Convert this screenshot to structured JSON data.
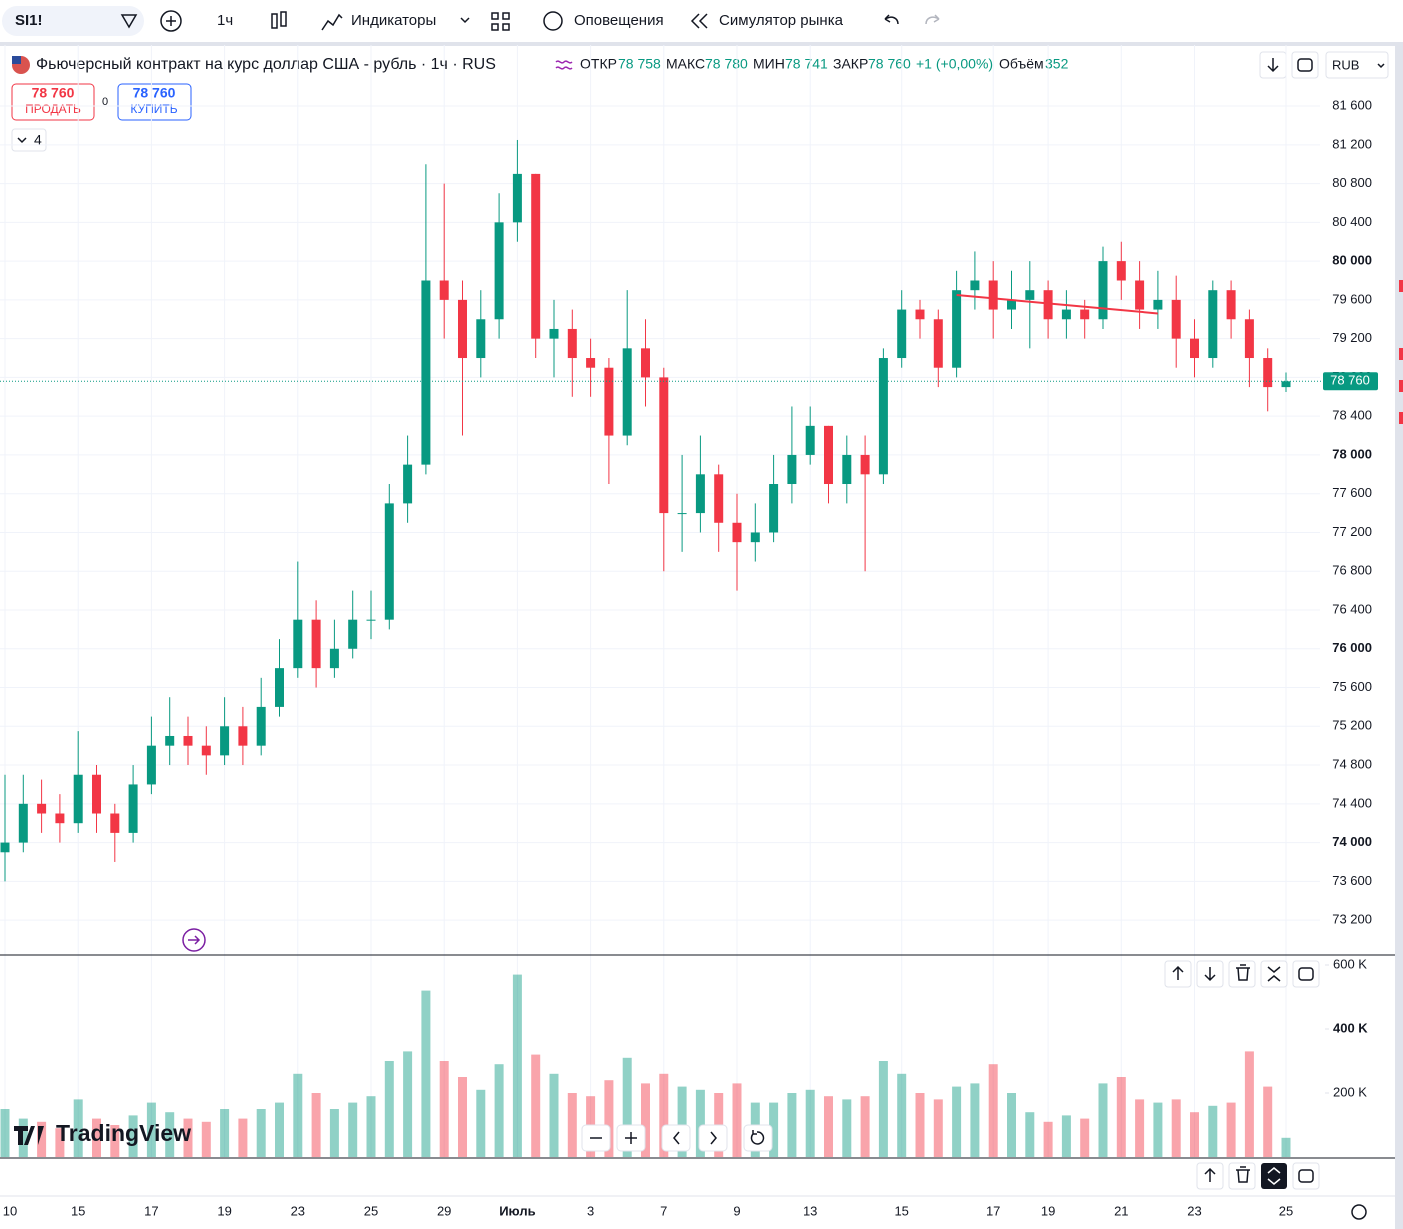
{
  "toolbar": {
    "symbol": "SI1!",
    "interval": "1ч",
    "indicators": "Индикаторы",
    "alerts": "Оповещения",
    "replay": "Симулятор рынка"
  },
  "legend": {
    "title": "Фьючерсный контракт на курс доллар США - рубль · 1ч · RUS",
    "open_label": "ОТКР",
    "open": "78 758",
    "high_label": "МАКС",
    "high": "78 780",
    "low_label": "МИН",
    "low": "78 741",
    "close_label": "ЗАКР",
    "close": "78 760",
    "change": "+1 (+0,00%)",
    "volume_label": "Объём",
    "volume": "352"
  },
  "trade": {
    "sell_price": "78 760",
    "sell": "ПРОДАТЬ",
    "spread": "0",
    "buy_price": "78 760",
    "buy": "КУПИТЬ"
  },
  "indicators_count": "4",
  "currency": "RUB",
  "brand": "TradingView",
  "chart_data": {
    "type": "candlestick",
    "up_color": "#089981",
    "down_color": "#f23645",
    "categories": [
      "10",
      null,
      null,
      null,
      "15",
      null,
      null,
      null,
      "17",
      null,
      null,
      null,
      "19",
      null,
      null,
      null,
      "23",
      null,
      null,
      null,
      "25",
      null,
      null,
      null,
      "29",
      null,
      null,
      null,
      "Июль",
      null,
      null,
      null,
      "3",
      null,
      null,
      null,
      "7",
      null,
      null,
      null,
      "9",
      null,
      null,
      null,
      "13",
      null,
      null,
      null,
      null,
      "15",
      null,
      null,
      null,
      null,
      "17",
      null,
      null,
      "19",
      null,
      null,
      null,
      "21",
      null,
      null,
      null,
      "23",
      null,
      null,
      null,
      null,
      "25"
    ],
    "open": [
      73900,
      74000,
      74400,
      74300,
      74200,
      74700,
      74300,
      74100,
      74600,
      75000,
      75100,
      75000,
      74900,
      75200,
      75000,
      75400,
      75800,
      76300,
      75800,
      76000,
      76300,
      76300,
      77500,
      77900,
      79800,
      79600,
      79000,
      79400,
      80400,
      80900,
      79200,
      79300,
      79000,
      78900,
      78200,
      79100,
      78800,
      77400,
      77400,
      77800,
      77300,
      77100,
      77200,
      77700,
      78000,
      78300,
      77700,
      78000,
      77800,
      79000,
      79500,
      79400,
      78900,
      79700,
      79800,
      79500,
      79600,
      79700,
      79400,
      79500,
      79400,
      80000,
      79800,
      79500,
      79600,
      79200,
      79000,
      79700,
      79400,
      79000,
      78700
    ],
    "high": [
      74700,
      74700,
      74650,
      74500,
      75150,
      74800,
      74400,
      74800,
      75300,
      75500,
      75300,
      75200,
      75500,
      75400,
      75700,
      76100,
      76900,
      76500,
      76300,
      76600,
      76600,
      77700,
      78200,
      81000,
      80800,
      79800,
      79700,
      80700,
      81250,
      80900,
      79600,
      79500,
      79200,
      79000,
      79700,
      79400,
      78900,
      78000,
      78200,
      77900,
      77600,
      77500,
      78000,
      78500,
      78500,
      78300,
      78200,
      78200,
      79100,
      79700,
      79600,
      79500,
      79900,
      80100,
      80000,
      79900,
      80000,
      79800,
      79700,
      79600,
      80150,
      80200,
      80000,
      79900,
      79850,
      79400,
      79800,
      79800,
      79500,
      79100,
      78850
    ],
    "low": [
      73600,
      73900,
      74100,
      74000,
      74100,
      74100,
      73800,
      74000,
      74500,
      74800,
      74800,
      74700,
      74800,
      74800,
      74900,
      75300,
      75700,
      75600,
      75700,
      75900,
      76100,
      76200,
      77300,
      77800,
      79200,
      78200,
      78800,
      79200,
      80200,
      79000,
      78800,
      78600,
      78600,
      77700,
      78100,
      78500,
      76800,
      77000,
      77200,
      77000,
      76600,
      76900,
      77100,
      77500,
      77900,
      77500,
      77500,
      76800,
      77700,
      78900,
      79200,
      78700,
      78800,
      79500,
      79200,
      79300,
      79100,
      79200,
      79200,
      79200,
      79300,
      79600,
      79300,
      79300,
      78900,
      78800,
      78900,
      79200,
      78700,
      78450,
      78650
    ],
    "close": [
      74000,
      74400,
      74300,
      74200,
      74700,
      74300,
      74100,
      74600,
      75000,
      75100,
      75000,
      74900,
      75200,
      75000,
      75400,
      75800,
      76300,
      75800,
      76000,
      76300,
      76300,
      77500,
      77900,
      79800,
      79600,
      79000,
      79400,
      80400,
      80900,
      79200,
      79300,
      79000,
      78900,
      78200,
      79100,
      78800,
      77400,
      77400,
      77800,
      77300,
      77100,
      77200,
      77700,
      78000,
      78300,
      77700,
      78000,
      77800,
      79000,
      79500,
      79400,
      78900,
      79700,
      79800,
      79500,
      79600,
      79700,
      79400,
      79500,
      79400,
      80000,
      79800,
      79500,
      79600,
      79200,
      79000,
      79700,
      79400,
      79000,
      78700,
      78760
    ],
    "volume": [
      150000,
      120000,
      110000,
      90000,
      180000,
      120000,
      100000,
      130000,
      170000,
      140000,
      120000,
      110000,
      150000,
      120000,
      150000,
      170000,
      260000,
      200000,
      150000,
      170000,
      190000,
      300000,
      330000,
      520000,
      300000,
      250000,
      210000,
      290000,
      570000,
      320000,
      260000,
      200000,
      190000,
      240000,
      310000,
      230000,
      260000,
      220000,
      210000,
      200000,
      230000,
      170000,
      170000,
      200000,
      210000,
      190000,
      180000,
      190000,
      300000,
      260000,
      200000,
      180000,
      220000,
      230000,
      290000,
      200000,
      140000,
      110000,
      130000,
      120000,
      230000,
      250000,
      180000,
      170000,
      180000,
      140000,
      160000,
      170000,
      330000,
      220000,
      60000
    ],
    "ylim": [
      72840,
      82230
    ],
    "yticks": [
      {
        "value": 73200,
        "label": "73 200"
      },
      {
        "value": 73600,
        "label": "73 600"
      },
      {
        "value": 74000,
        "label": "74 000"
      },
      {
        "value": 74400,
        "label": "74 400"
      },
      {
        "value": 74800,
        "label": "74 800"
      },
      {
        "value": 75200,
        "label": "75 200"
      },
      {
        "value": 75600,
        "label": "75 600"
      },
      {
        "value": 76000,
        "label": "76 000"
      },
      {
        "value": 76400,
        "label": "76 400"
      },
      {
        "value": 76800,
        "label": "76 800"
      },
      {
        "value": 77200,
        "label": "77 200"
      },
      {
        "value": 77600,
        "label": "77 600"
      },
      {
        "value": 78000,
        "label": "78 000"
      },
      {
        "value": 78400,
        "label": "78 400"
      },
      {
        "value": 78800,
        "label": "78 800"
      },
      {
        "value": 79200,
        "label": "79 200"
      },
      {
        "value": 79600,
        "label": "79 600"
      },
      {
        "value": 80000,
        "label": "80 000"
      },
      {
        "value": 80400,
        "label": "80 400"
      },
      {
        "value": 80800,
        "label": "80 800"
      },
      {
        "value": 81200,
        "label": "81 200"
      },
      {
        "value": 81600,
        "label": "81 600"
      }
    ],
    "volume_ylim": [
      0,
      625000
    ],
    "volume_yticks": [
      {
        "value": 200000,
        "label": "200 K"
      },
      {
        "value": 400000,
        "label": "400 K"
      },
      {
        "value": 600000,
        "label": "600 K"
      }
    ],
    "last_price": {
      "value": 78760,
      "label": "78 760",
      "color": "#089981"
    },
    "trendline": {
      "x": [
        52,
        63
      ],
      "y": [
        79650,
        79460
      ],
      "color": "#f23645"
    },
    "grid": true
  }
}
